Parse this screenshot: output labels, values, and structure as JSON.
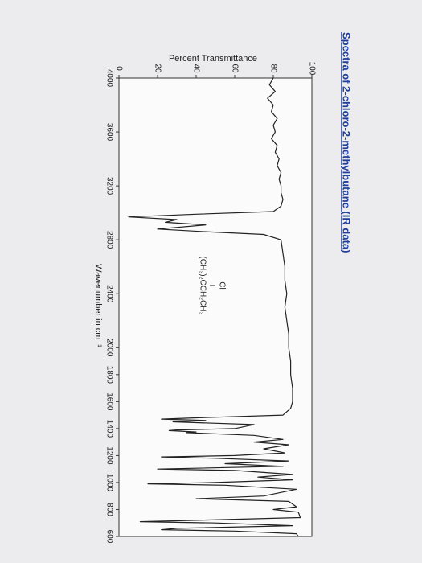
{
  "chart_data": {
    "type": "line",
    "title": "Spectra of 2-chloro-2-methylbutane (IR data)",
    "x_label": "Wavenumber in cm⁻¹",
    "y_label": "Percent Transmittance",
    "annotations": [
      "Cl",
      "(CH₃)₂CCH₂CH₃"
    ],
    "color": "#222222",
    "xlim": [
      4000,
      600
    ],
    "xticks": [
      4000,
      3600,
      3200,
      2800,
      2400,
      2000,
      1800,
      1600,
      1400,
      1200,
      1000,
      800,
      600
    ],
    "ylim": [
      0,
      100
    ],
    "yticks": [
      0,
      20,
      40,
      60,
      80,
      100
    ],
    "x": [
      4000,
      3950,
      3900,
      3850,
      3800,
      3750,
      3700,
      3650,
      3600,
      3550,
      3500,
      3450,
      3400,
      3350,
      3300,
      3250,
      3200,
      3150,
      3100,
      3050,
      3010,
      2990,
      2970,
      2950,
      2930,
      2910,
      2880,
      2860,
      2840,
      2800,
      2700,
      2600,
      2500,
      2400,
      2300,
      2200,
      2100,
      2000,
      1900,
      1800,
      1700,
      1600,
      1550,
      1500,
      1480,
      1470,
      1460,
      1450,
      1430,
      1400,
      1390,
      1385,
      1375,
      1370,
      1350,
      1320,
      1300,
      1280,
      1250,
      1220,
      1200,
      1190,
      1180,
      1160,
      1140,
      1120,
      1100,
      1090,
      1060,
      1040,
      1020,
      1000,
      990,
      980,
      950,
      900,
      880,
      860,
      820,
      800,
      780,
      740,
      720,
      710,
      700,
      680,
      660,
      650,
      640,
      620,
      600
    ],
    "values": [
      80,
      78,
      81,
      77,
      80,
      79,
      82,
      80,
      81,
      79,
      82,
      81,
      83,
      82,
      84,
      83,
      84,
      84,
      85,
      84,
      80,
      40,
      5,
      30,
      24,
      45,
      20,
      45,
      75,
      84,
      85,
      86,
      86,
      87,
      86,
      87,
      88,
      88,
      89,
      89,
      90,
      90,
      89,
      85,
      40,
      22,
      45,
      28,
      70,
      60,
      30,
      26,
      40,
      35,
      70,
      85,
      70,
      88,
      75,
      86,
      60,
      22,
      50,
      88,
      55,
      85,
      20,
      60,
      90,
      72,
      90,
      50,
      15,
      55,
      92,
      75,
      40,
      88,
      92,
      80,
      93,
      94,
      40,
      11,
      50,
      90,
      30,
      22,
      60,
      92,
      93
    ]
  }
}
